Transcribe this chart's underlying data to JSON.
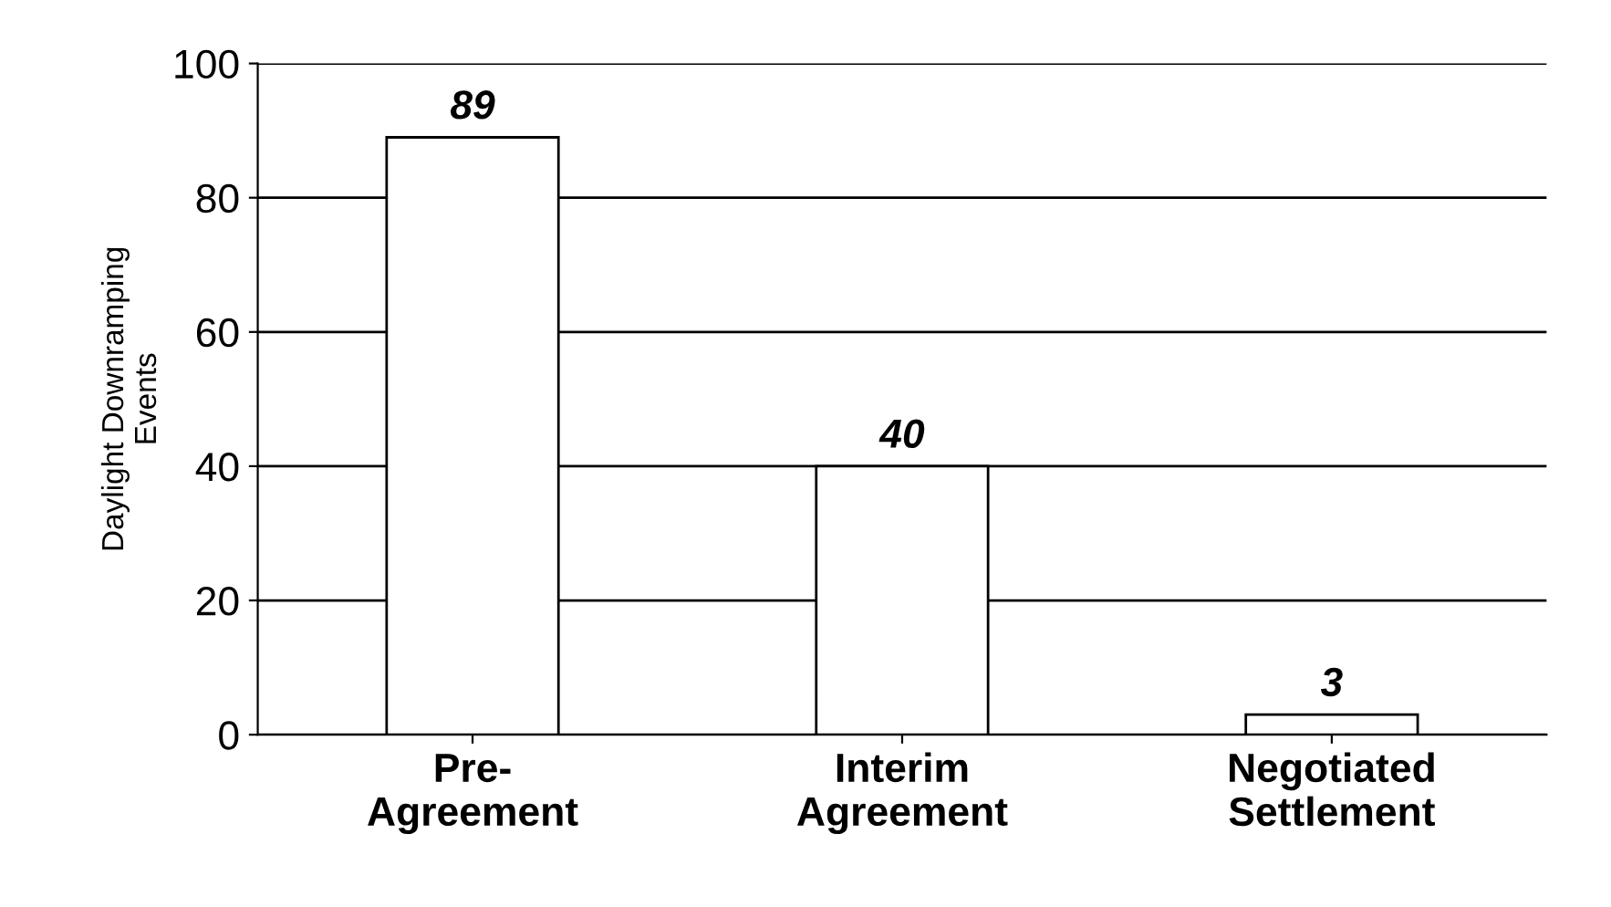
{
  "chart_data": {
    "type": "bar",
    "ylabel": "Daylight Downramping\nEvents",
    "categories": [
      "Pre-\nAgreement",
      "Interim\nAgreement",
      "Negotiated\nSettlement"
    ],
    "values": [
      89,
      40,
      3
    ],
    "color": "#ffffff",
    "ylim": [
      0,
      100
    ],
    "yticks": [
      0,
      20,
      40,
      60,
      80,
      100
    ],
    "grid": "y",
    "data_labels": true
  }
}
